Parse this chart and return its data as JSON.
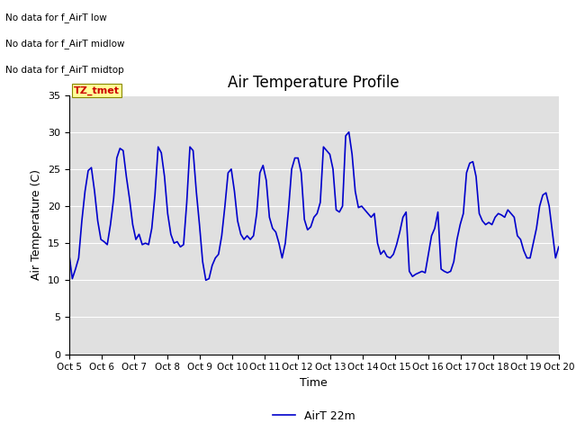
{
  "title": "Air Temperature Profile",
  "xlabel": "Time",
  "ylabel": "Air Temperature (C)",
  "ylim": [
    0,
    35
  ],
  "yticks": [
    0,
    5,
    10,
    15,
    20,
    25,
    30,
    35
  ],
  "x_labels": [
    "Oct 5",
    "Oct 6",
    "Oct 7",
    "Oct 8",
    "Oct 9",
    "Oct 10",
    "Oct 11",
    "Oct 12",
    "Oct 13",
    "Oct 14",
    "Oct 15",
    "Oct 16",
    "Oct 17",
    "Oct 18",
    "Oct 19",
    "Oct 20"
  ],
  "line_color": "#0000cc",
  "line_label": "AirT 22m",
  "background_color": "#e0e0e0",
  "outer_background": "#ffffff",
  "no_data_texts": [
    "No data for f_AirT low",
    "No data for f_AirT midlow",
    "No data for f_AirT midtop"
  ],
  "tz_label": "TZ_tmet",
  "tz_bg": "#ffff99",
  "tz_fg": "#cc0000",
  "y_values": [
    13.5,
    10.2,
    11.5,
    13.0,
    18.0,
    22.0,
    24.8,
    25.2,
    22.0,
    18.0,
    15.5,
    15.2,
    14.8,
    17.5,
    21.0,
    26.5,
    27.8,
    27.5,
    24.0,
    21.0,
    17.5,
    15.5,
    16.2,
    14.8,
    15.0,
    14.8,
    17.0,
    21.5,
    28.0,
    27.2,
    24.0,
    19.0,
    16.2,
    15.0,
    15.2,
    14.5,
    14.8,
    20.5,
    28.0,
    27.5,
    22.0,
    17.5,
    12.5,
    10.0,
    10.2,
    12.0,
    13.0,
    13.5,
    16.0,
    20.0,
    24.5,
    25.0,
    22.0,
    18.0,
    16.2,
    15.5,
    16.0,
    15.5,
    16.0,
    19.0,
    24.5,
    25.5,
    23.5,
    18.5,
    17.0,
    16.5,
    15.0,
    13.0,
    15.0,
    19.5,
    25.0,
    26.5,
    26.5,
    24.5,
    18.2,
    16.8,
    17.2,
    18.5,
    19.0,
    20.5,
    28.0,
    27.5,
    27.0,
    25.0,
    19.5,
    19.2,
    20.0,
    29.5,
    30.0,
    27.0,
    22.0,
    19.8,
    20.0,
    19.5,
    19.0,
    18.5,
    19.0,
    15.0,
    13.5,
    14.0,
    13.2,
    13.0,
    13.5,
    14.8,
    16.5,
    18.5,
    19.2,
    11.2,
    10.5,
    10.8,
    11.0,
    11.2,
    11.0,
    13.5,
    16.0,
    17.0,
    19.2,
    11.5,
    11.2,
    11.0,
    11.2,
    12.5,
    15.5,
    17.5,
    19.0,
    24.5,
    25.8,
    26.0,
    24.0,
    19.0,
    18.0,
    17.5,
    17.8,
    17.5,
    18.5,
    19.0,
    18.8,
    18.5,
    19.5,
    19.0,
    18.5,
    16.0,
    15.5,
    14.0,
    13.0,
    13.0,
    15.0,
    17.0,
    20.0,
    21.5,
    21.8,
    20.0,
    16.5,
    13.0,
    14.5
  ],
  "figsize": [
    6.4,
    4.8
  ],
  "dpi": 100
}
